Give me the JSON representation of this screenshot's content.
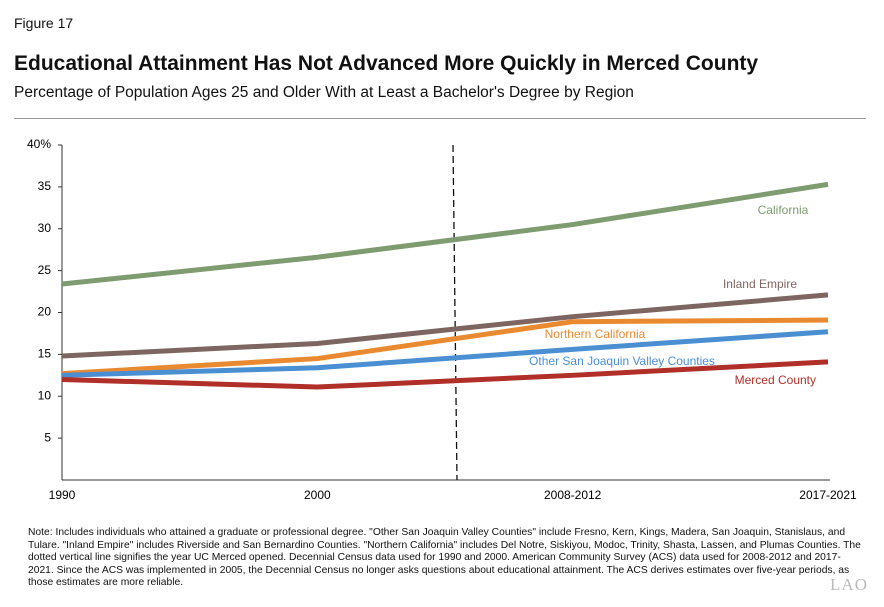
{
  "chart_data": {
    "type": "line",
    "figure_label": "Figure 17",
    "title": "Educational Attainment Has Not Advanced More Quickly in Merced County",
    "subtitle": "Percentage of Population Ages 25 and Older With at Least a Bachelor's Degree by Region",
    "categories": [
      "1990",
      "2000",
      "2008-2012",
      "2017-2021"
    ],
    "series": [
      {
        "name": "California",
        "color": "#7f9b70",
        "values": [
          23.4,
          26.6,
          30.5,
          35.3
        ]
      },
      {
        "name": "Inland Empire",
        "color": "#7d6661",
        "values": [
          14.8,
          16.3,
          19.5,
          22.1
        ]
      },
      {
        "name": "Northern California",
        "color": "#e98a30",
        "values": [
          12.7,
          14.5,
          18.9,
          19.1
        ]
      },
      {
        "name": "Other San Joaquin Valley Counties",
        "color": "#4b8fd3",
        "values": [
          12.5,
          13.4,
          15.6,
          17.7
        ]
      },
      {
        "name": "Merced County",
        "color": "#b12f29",
        "values": [
          12.0,
          11.1,
          12.5,
          14.1
        ]
      }
    ],
    "ylim": [
      0,
      40
    ],
    "yticks": [
      5,
      10,
      15,
      20,
      25,
      30,
      35,
      {
        "value": 40,
        "label": "40%"
      }
    ],
    "note": "Note: Includes individuals who attained a graduate or professional degree. \"Other San Joaquin Valley Counties\" include Fresno, Kern, Kings, Madera, San Joaquin, Stanislaus, and Tulare. \"Inland Empire\" includes Riverside and San Bernardino Counties. \"Northern California\" includes Del Notre, Siskiyou, Modoc, Trinity, Shasta, Lassen, and Plumas Counties. The dotted vertical line signifies the year UC Merced opened. Decennial Census data used for 1990 and 2000. American Community Survey (ACS) data used for 2008-2012 and 2017-2021. Since the ACS was implemented in 2005, the Decennial Census no longer asks questions about educational attainment. The ACS derives estimates over five-year periods, as those estimates are more reliable.",
    "logo": "LAO"
  }
}
